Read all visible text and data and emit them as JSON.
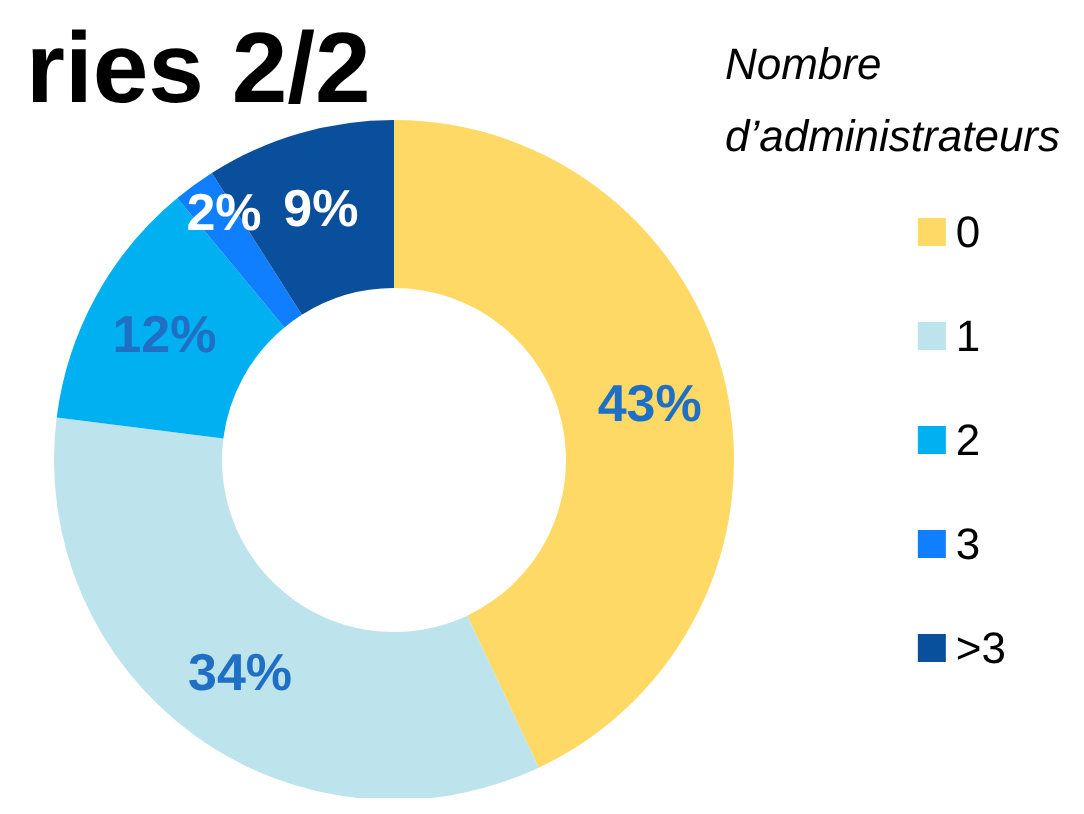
{
  "chart_data": {
    "type": "donut",
    "title": "ries 2/2",
    "legend_title": "Nombre d’administrateurs",
    "categories": [
      "0",
      "1",
      "2",
      "3",
      ">3"
    ],
    "values": [
      43,
      34,
      12,
      2,
      9
    ],
    "colors": [
      "#ffd966",
      "#bde3ec",
      "#00b0f0",
      "#0f7fff",
      "#0a4f9c"
    ],
    "value_labels": [
      "43%",
      "34%",
      "12%",
      "2%",
      "9%"
    ],
    "legend": "right"
  }
}
